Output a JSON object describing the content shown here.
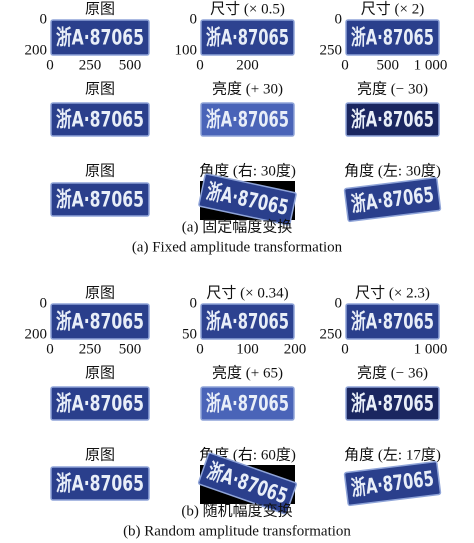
{
  "plate_text": "浙A·87065",
  "sections": [
    {
      "rows": [
        [
          {
            "title": "原图",
            "yticks": [
              "0",
              "200"
            ],
            "xticks": [
              "0",
              "250",
              "500"
            ]
          },
          {
            "title": "尺寸 (× 0.5)",
            "yticks": [
              "0",
              "100"
            ],
            "xticks": [
              "0",
              "200"
            ]
          },
          {
            "title": "尺寸 (× 2)",
            "yticks": [
              "0",
              "250"
            ],
            "xticks": [
              "0",
              "500",
              "1 000"
            ]
          }
        ],
        [
          {
            "title": "原图"
          },
          {
            "title": "亮度 (+ 30)"
          },
          {
            "title": "亮度 (− 30)"
          }
        ],
        [
          {
            "title": "原图"
          },
          {
            "title": "角度 (右: 30度)"
          },
          {
            "title": "角度 (左: 30度)"
          }
        ]
      ],
      "caption_zh": "(a) 固定幅度变换",
      "caption_en": "(a) Fixed amplitude transformation"
    },
    {
      "rows": [
        [
          {
            "title": "原图",
            "yticks": [
              "0",
              "200"
            ],
            "xticks": [
              "0",
              "250",
              "500"
            ]
          },
          {
            "title": "尺寸 (× 0.34)",
            "yticks": [
              "0",
              "50"
            ],
            "xticks": [
              "0",
              "100",
              "200"
            ]
          },
          {
            "title": "尺寸 (× 2.3)",
            "yticks": [
              "0",
              "250"
            ],
            "xticks": [
              "0",
              "1 000"
            ]
          }
        ],
        [
          {
            "title": "原图"
          },
          {
            "title": "亮度 (+ 65)"
          },
          {
            "title": "亮度 (− 36)"
          }
        ],
        [
          {
            "title": "原图"
          },
          {
            "title": "角度 (右: 60度)"
          },
          {
            "title": "角度 (左: 17度)"
          }
        ]
      ],
      "caption_zh": "(b) 随机幅度变换",
      "caption_en": "(b) Random amplitude transformation"
    }
  ]
}
